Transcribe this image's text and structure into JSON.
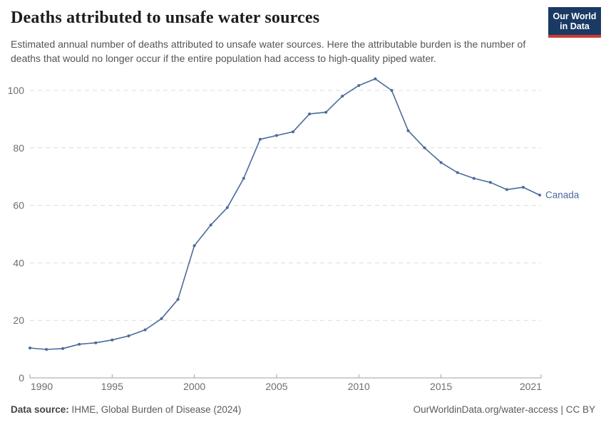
{
  "header": {
    "title": "Deaths attributed to unsafe water sources",
    "subtitle": "Estimated annual number of deaths attributed to unsafe water sources. Here the attributable burden is the number of deaths that would no longer occur if the entire population had access to high-quality piped water.",
    "logo": {
      "line1": "Our World",
      "line2": "in Data",
      "bg_color": "#1a3a64",
      "bar_color": "#cc3b34"
    }
  },
  "chart_data": {
    "type": "line",
    "title": "Deaths attributed to unsafe water sources",
    "xlabel": "",
    "ylabel": "",
    "xlim": [
      1990,
      2021
    ],
    "ylim": [
      0,
      100
    ],
    "x_ticks": [
      1990,
      1995,
      2000,
      2005,
      2010,
      2015,
      2021
    ],
    "y_ticks": [
      0,
      20,
      40,
      60,
      80,
      100
    ],
    "grid": "horizontal-dashed",
    "legend_position": "end-of-line-label",
    "colors": {
      "line": "#4c6a9c",
      "grid": "#dcdcdc",
      "axis": "#a0a0a0",
      "tick_text": "#6e6e6e"
    },
    "series": [
      {
        "name": "Canada",
        "x": [
          1990,
          1991,
          1992,
          1993,
          1994,
          1995,
          1996,
          1997,
          1998,
          1999,
          2000,
          2001,
          2002,
          2003,
          2004,
          2005,
          2006,
          2007,
          2008,
          2009,
          2010,
          2011,
          2012,
          2013,
          2014,
          2015,
          2016,
          2017,
          2018,
          2019,
          2020,
          2021
        ],
        "values": [
          10.4,
          9.9,
          10.2,
          11.7,
          12.2,
          13.2,
          14.6,
          16.7,
          20.6,
          27.3,
          46.0,
          53.2,
          59.2,
          69.4,
          83.0,
          84.3,
          85.6,
          91.8,
          92.4,
          98.0,
          101.7,
          104.0,
          100.0,
          86.0,
          80.0,
          74.9,
          71.4,
          69.4,
          68.0,
          65.5,
          66.3,
          63.6
        ]
      }
    ]
  },
  "footer": {
    "source_label": "Data source:",
    "source_value": " IHME, Global Burden of Disease (2024)",
    "credit": "OurWorldinData.org/water-access | CC BY"
  }
}
